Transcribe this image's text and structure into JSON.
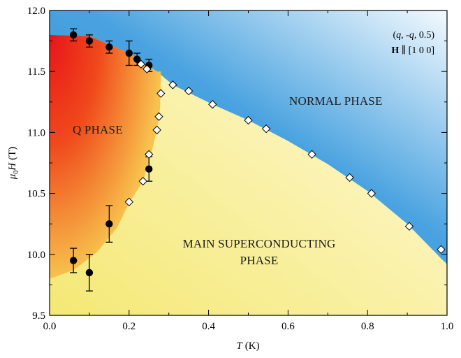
{
  "chart_data": {
    "type": "scatter",
    "title": "",
    "xlabel": {
      "symbol": "T",
      "unit": "(K)"
    },
    "ylabel": {
      "mu": "μ",
      "sub": "0",
      "symbol": "H",
      "unit": "(T)"
    },
    "xlim": [
      0.0,
      1.0
    ],
    "ylim": [
      9.5,
      12.0
    ],
    "xticks": [
      "0.0",
      "0.2",
      "0.4",
      "0.6",
      "0.8",
      "1.0"
    ],
    "yticks": [
      "9.5",
      "10.0",
      "10.5",
      "11.0",
      "11.5",
      "12.0"
    ],
    "annotation": {
      "line1": {
        "open": "(",
        "q": "q",
        "mid": ", -",
        "q2": "q",
        "close": ", 0.5)"
      },
      "line2": {
        "bold": "H",
        "rest": " ∥ [1 0 0]"
      }
    },
    "regions": {
      "q_phase": "Q PHASE",
      "normal": "NORMAL PHASE",
      "main_line1": "MAIN SUPERCONDUCTING",
      "main_line2": "PHASE"
    },
    "colors": {
      "normal_dark": "#2f8fd6",
      "normal_light": "#f4fafe",
      "q_dark": "#e8141a",
      "q_light": "#f7c24d",
      "sc_light": "#fbf7c7",
      "sc_dark": "#f4e874"
    },
    "series": [
      {
        "marker": "filled-circle",
        "points": [
          {
            "x": 0.06,
            "y": 9.95,
            "err": 0.1
          },
          {
            "x": 0.1,
            "y": 9.85,
            "err": 0.15
          },
          {
            "x": 0.15,
            "y": 10.25,
            "err": 0.15
          },
          {
            "x": 0.25,
            "y": 10.7,
            "err": 0.1
          },
          {
            "x": 0.06,
            "y": 11.8,
            "err": 0.05
          },
          {
            "x": 0.1,
            "y": 11.75,
            "err": 0.05
          },
          {
            "x": 0.15,
            "y": 11.7,
            "err": 0.05
          },
          {
            "x": 0.2,
            "y": 11.65,
            "err": 0.1
          },
          {
            "x": 0.22,
            "y": 11.6,
            "err": 0.05
          },
          {
            "x": 0.25,
            "y": 11.55,
            "err": 0.05
          }
        ]
      },
      {
        "marker": "open-diamond",
        "points": [
          {
            "x": 0.2,
            "y": 10.43
          },
          {
            "x": 0.235,
            "y": 10.6
          },
          {
            "x": 0.25,
            "y": 10.82
          },
          {
            "x": 0.27,
            "y": 11.02
          },
          {
            "x": 0.275,
            "y": 11.13
          },
          {
            "x": 0.28,
            "y": 11.32
          },
          {
            "x": 0.31,
            "y": 11.39
          },
          {
            "x": 0.35,
            "y": 11.34
          },
          {
            "x": 0.41,
            "y": 11.23
          },
          {
            "x": 0.5,
            "y": 11.1
          },
          {
            "x": 0.545,
            "y": 11.03
          },
          {
            "x": 0.66,
            "y": 10.82
          },
          {
            "x": 0.755,
            "y": 10.63
          },
          {
            "x": 0.81,
            "y": 10.5
          },
          {
            "x": 0.905,
            "y": 10.23
          },
          {
            "x": 0.985,
            "y": 10.04
          },
          {
            "x": 0.23,
            "y": 11.56
          },
          {
            "x": 0.245,
            "y": 11.52
          }
        ]
      }
    ],
    "boundaries": {
      "normal": [
        [
          0.0,
          11.8
        ],
        [
          0.1,
          11.79
        ],
        [
          0.2,
          11.65
        ],
        [
          0.27,
          11.5
        ],
        [
          0.31,
          11.39
        ],
        [
          0.41,
          11.23
        ],
        [
          0.5,
          11.1
        ],
        [
          0.6,
          10.93
        ],
        [
          0.7,
          10.74
        ],
        [
          0.8,
          10.52
        ],
        [
          0.9,
          10.25
        ],
        [
          0.99,
          9.95
        ],
        [
          1.0,
          9.92
        ]
      ],
      "q_phase": [
        [
          0.0,
          9.8
        ],
        [
          0.06,
          9.87
        ],
        [
          0.12,
          10.02
        ],
        [
          0.17,
          10.22
        ],
        [
          0.2,
          10.42
        ],
        [
          0.235,
          10.6
        ],
        [
          0.255,
          10.82
        ],
        [
          0.27,
          11.02
        ],
        [
          0.278,
          11.2
        ],
        [
          0.28,
          11.5
        ]
      ]
    }
  }
}
